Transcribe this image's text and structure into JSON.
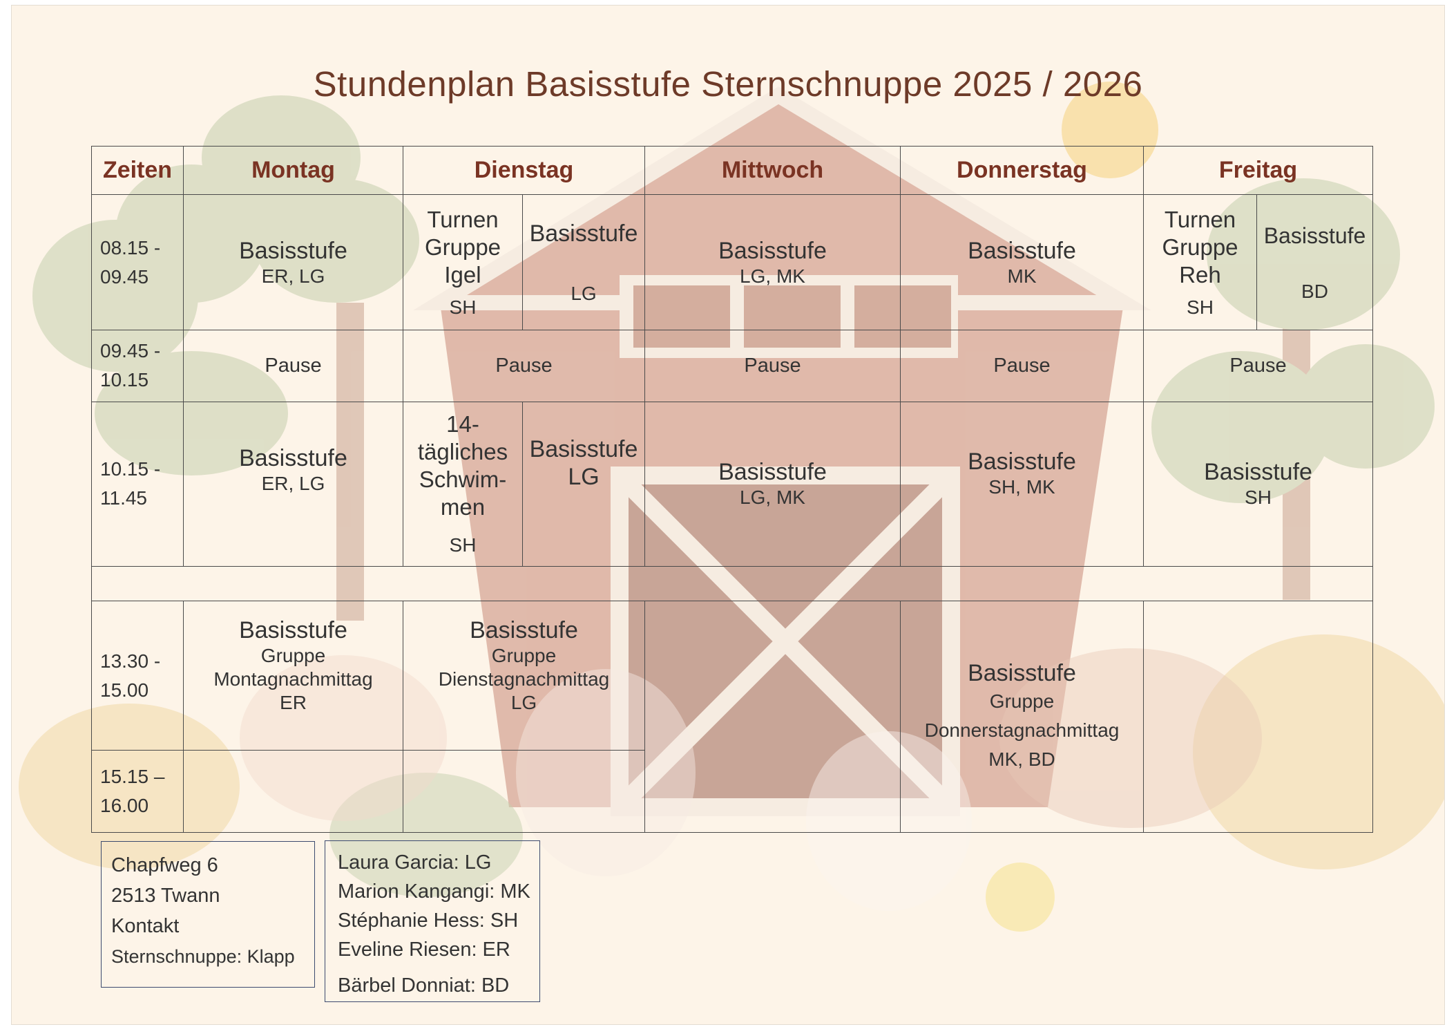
{
  "title": "Stundenplan Basisstufe Sternschnuppe 2025 / 2026",
  "headers": [
    "Zeiten",
    "Montag",
    "Dienstag",
    "Mittwoch",
    "Donnerstag",
    "Freitag"
  ],
  "times": {
    "t1": "08.15 - 09.45",
    "t2": "09.45 - 10.15",
    "t3": "10.15 - 11.45",
    "t4": "13.30 - 15.00",
    "t5": "15.15 – 16.00"
  },
  "row1": {
    "mo_title": "Basisstufe",
    "mo_sub": "ER, LG",
    "di_a_title": "Turnen Gruppe Igel",
    "di_a_sub": "SH",
    "di_b_title": "Basisstufe",
    "di_b_sub": "LG",
    "mi_title": "Basisstufe",
    "mi_sub": "LG, MK",
    "do_title": "Basisstufe",
    "do_sub": "MK",
    "fr_a_title": "Turnen Gruppe Reh",
    "fr_a_sub": "SH",
    "fr_b_title": "Basisstufe",
    "fr_b_sub": "BD"
  },
  "pause": "Pause",
  "row3": {
    "mo_title": "Basisstufe",
    "mo_sub": "ER, LG",
    "di_a_title": "14-tägliches Schwim-men",
    "di_a_sub": "SH",
    "di_b_title": "Basisstufe",
    "di_b_sub": "LG",
    "mi_title": "Basisstufe",
    "mi_sub": "LG, MK",
    "do_title": "Basisstufe",
    "do_sub": "SH, MK",
    "fr_title": "Basisstufe",
    "fr_sub": "SH"
  },
  "row4": {
    "mo_title": "Basisstufe",
    "mo_l1": "Gruppe",
    "mo_l2": "Montagnachmittag",
    "mo_l3": "ER",
    "di_title": "Basisstufe",
    "di_l1": "Gruppe",
    "di_l2": "Dienstagnachmittag",
    "di_l3": "LG",
    "do_title": "Basisstufe",
    "do_l1": "Gruppe",
    "do_l2": "Donnerstagnachmittag",
    "do_l3": "MK, BD"
  },
  "address": {
    "line1": "Chapfweg 6",
    "line2": "2513 Twann",
    "line3": "Kontakt",
    "line4": "Sternschnuppe: Klapp"
  },
  "teachers": {
    "line1": "Laura Garcia: LG",
    "line2": "Marion Kangangi:  MK",
    "line3": "Stéphanie Hess: SH",
    "line4": "Eveline Riesen: ER",
    "line5": "Bärbel Donniat: BD"
  },
  "colors": {
    "title": "#6d3a28",
    "header": "#7a3323",
    "page_bg": "#fdf4e8",
    "barn": "#c98a78"
  }
}
